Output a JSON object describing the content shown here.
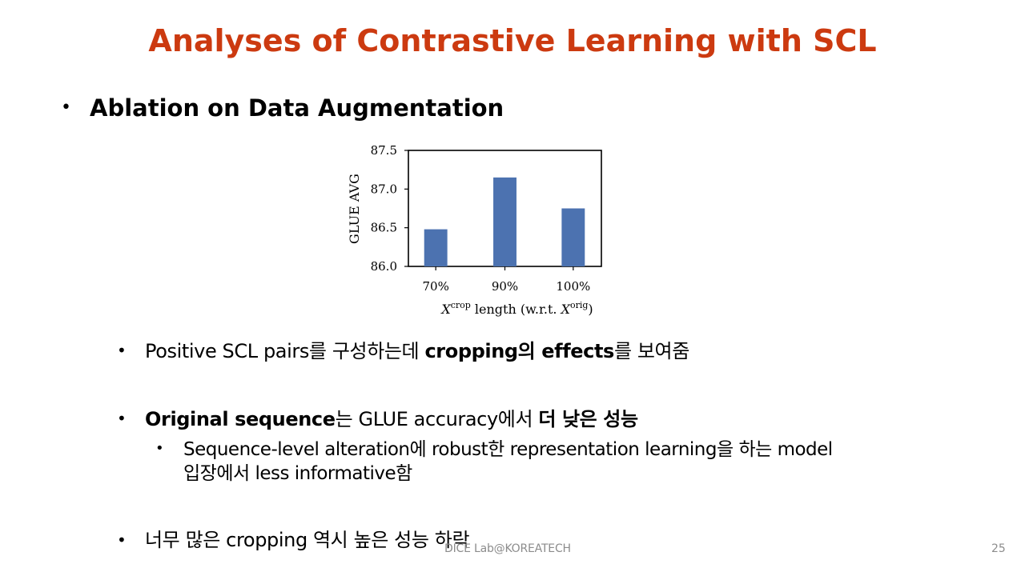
{
  "slide": {
    "title": "Analyses of Contrastive Learning with SCL",
    "title_color": "#CC3A10",
    "heading_bullet": "•",
    "heading": "Ablation on Data Augmentation",
    "bullets": [
      {
        "marker": "•",
        "parts": [
          {
            "text": "Positive SCL pairs를 구성하는데 ",
            "bold": false
          },
          {
            "text": "cropping의 effects",
            "bold": true
          },
          {
            "text": "를 보여줌",
            "bold": false
          }
        ]
      },
      {
        "marker": "•",
        "parts": [
          {
            "text": "Original sequence",
            "bold": true
          },
          {
            "text": "는 GLUE accuracy에서 ",
            "bold": false
          },
          {
            "text": "더 낮은 성능",
            "bold": true
          }
        ]
      },
      {
        "marker": "•",
        "lines": [
          "Sequence-level alteration에 robust한 representation learning을 하는 model",
          "입장에서 less informative함"
        ]
      },
      {
        "marker": "•",
        "parts": [
          {
            "text": "너무 많은 cropping 역시 높은 성능 하락",
            "bold": false
          }
        ]
      }
    ],
    "footer": "DICE Lab@KOREATECH",
    "page_number": "25"
  },
  "chart_data": {
    "type": "bar",
    "categories": [
      "70%",
      "90%",
      "100%"
    ],
    "values": [
      86.48,
      87.15,
      86.75
    ],
    "ylabel": "GLUE AVG",
    "xlabel": {
      "parts": [
        "X",
        "crop",
        " length (w.r.t. ",
        "X",
        "orig",
        ")"
      ]
    },
    "ylim": [
      86.0,
      87.5
    ],
    "yticks": [
      "86.0",
      "86.5",
      "87.0",
      "87.5"
    ],
    "ytick_values": [
      86.0,
      86.5,
      87.0,
      87.5
    ],
    "bar_color": "#4C72B0",
    "grid": false
  }
}
